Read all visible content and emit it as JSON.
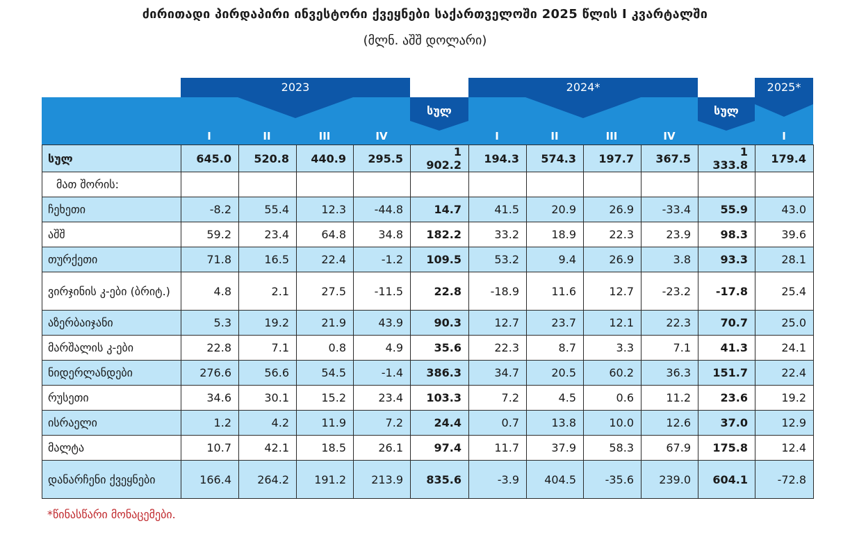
{
  "title": "ძირითადი პირდაპირი ინვესტორი ქვეყნები საქართველოში 2025 წლის I კვარტალში",
  "subtitle": "(მლნ. აშშ დოლარი)",
  "header": {
    "year_2023": "2023",
    "year_2024": "2024*",
    "year_2025": "2025*",
    "total_2023": "სულ",
    "total_2024": "სულ",
    "quarters": [
      "I",
      "II",
      "III",
      "IV",
      "",
      "I",
      "II",
      "III",
      "IV",
      "",
      "I"
    ]
  },
  "rows": [
    {
      "label": "სულ",
      "values": [
        "645.0",
        "520.8",
        "440.9",
        "295.5",
        "1 902.2",
        "194.3",
        "574.3",
        "197.7",
        "367.5",
        "1 333.8",
        "179.4"
      ],
      "style": "blue",
      "bold": true
    },
    {
      "label": "მათ შორის:",
      "values": [
        "",
        "",
        "",
        "",
        "",
        "",
        "",
        "",
        "",
        "",
        ""
      ],
      "style": "white",
      "indent": true
    },
    {
      "label": "ჩეხეთი",
      "values": [
        "-8.2",
        "55.4",
        "12.3",
        "-44.8",
        "14.7",
        "41.5",
        "20.9",
        "26.9",
        "-33.4",
        "55.9",
        "43.0"
      ],
      "style": "blue"
    },
    {
      "label": "აშშ",
      "values": [
        "59.2",
        "23.4",
        "64.8",
        "34.8",
        "182.2",
        "33.2",
        "18.9",
        "22.3",
        "23.9",
        "98.3",
        "39.6"
      ],
      "style": "white"
    },
    {
      "label": "თურქეთი",
      "values": [
        "71.8",
        "16.5",
        "22.4",
        "-1.2",
        "109.5",
        "53.2",
        "9.4",
        "26.9",
        "3.8",
        "93.3",
        "28.1"
      ],
      "style": "blue"
    },
    {
      "label": "ვირჯინის კ-ები (ბრიტ.)",
      "values": [
        "4.8",
        "2.1",
        "27.5",
        "-11.5",
        "22.8",
        "-18.9",
        "11.6",
        "12.7",
        "-23.2",
        "-17.8",
        "25.4"
      ],
      "style": "white",
      "tall": true
    },
    {
      "label": "აზერბაიჯანი",
      "values": [
        "5.3",
        "19.2",
        "21.9",
        "43.9",
        "90.3",
        "12.7",
        "23.7",
        "12.1",
        "22.3",
        "70.7",
        "25.0"
      ],
      "style": "blue"
    },
    {
      "label": "მარშალის კ-ები",
      "values": [
        "22.8",
        "7.1",
        "0.8",
        "4.9",
        "35.6",
        "22.3",
        "8.7",
        "3.3",
        "7.1",
        "41.3",
        "24.1"
      ],
      "style": "white"
    },
    {
      "label": "ნიდერლანდები",
      "values": [
        "276.6",
        "56.6",
        "54.5",
        "-1.4",
        "386.3",
        "34.7",
        "20.5",
        "60.2",
        "36.3",
        "151.7",
        "22.4"
      ],
      "style": "blue"
    },
    {
      "label": "რუსეთი",
      "values": [
        "34.6",
        "30.1",
        "15.2",
        "23.4",
        "103.3",
        "7.2",
        "4.5",
        "0.6",
        "11.2",
        "23.6",
        "19.2"
      ],
      "style": "white"
    },
    {
      "label": "ისრაელი",
      "values": [
        "1.2",
        "4.2",
        "11.9",
        "7.2",
        "24.4",
        "0.7",
        "13.8",
        "10.0",
        "12.6",
        "37.0",
        "12.9"
      ],
      "style": "blue"
    },
    {
      "label": "მალტა",
      "values": [
        "10.7",
        "42.1",
        "18.5",
        "26.1",
        "97.4",
        "11.7",
        "37.9",
        "58.3",
        "67.9",
        "175.8",
        "12.4"
      ],
      "style": "white"
    },
    {
      "label": "დანარჩენი ქვეყნები",
      "values": [
        "166.4",
        "264.2",
        "191.2",
        "213.9",
        "835.6",
        "-3.9",
        "404.5",
        "-35.6",
        "239.0",
        "604.1",
        "-72.8"
      ],
      "style": "blue",
      "tall": true
    }
  ],
  "footnote": "*წინასწარი მონაცემები.",
  "colors": {
    "header_dark": "#0d57a8",
    "header_light": "#1f8ed8",
    "row_blue": "#bfe5f8",
    "footnote": "#c0292d"
  }
}
